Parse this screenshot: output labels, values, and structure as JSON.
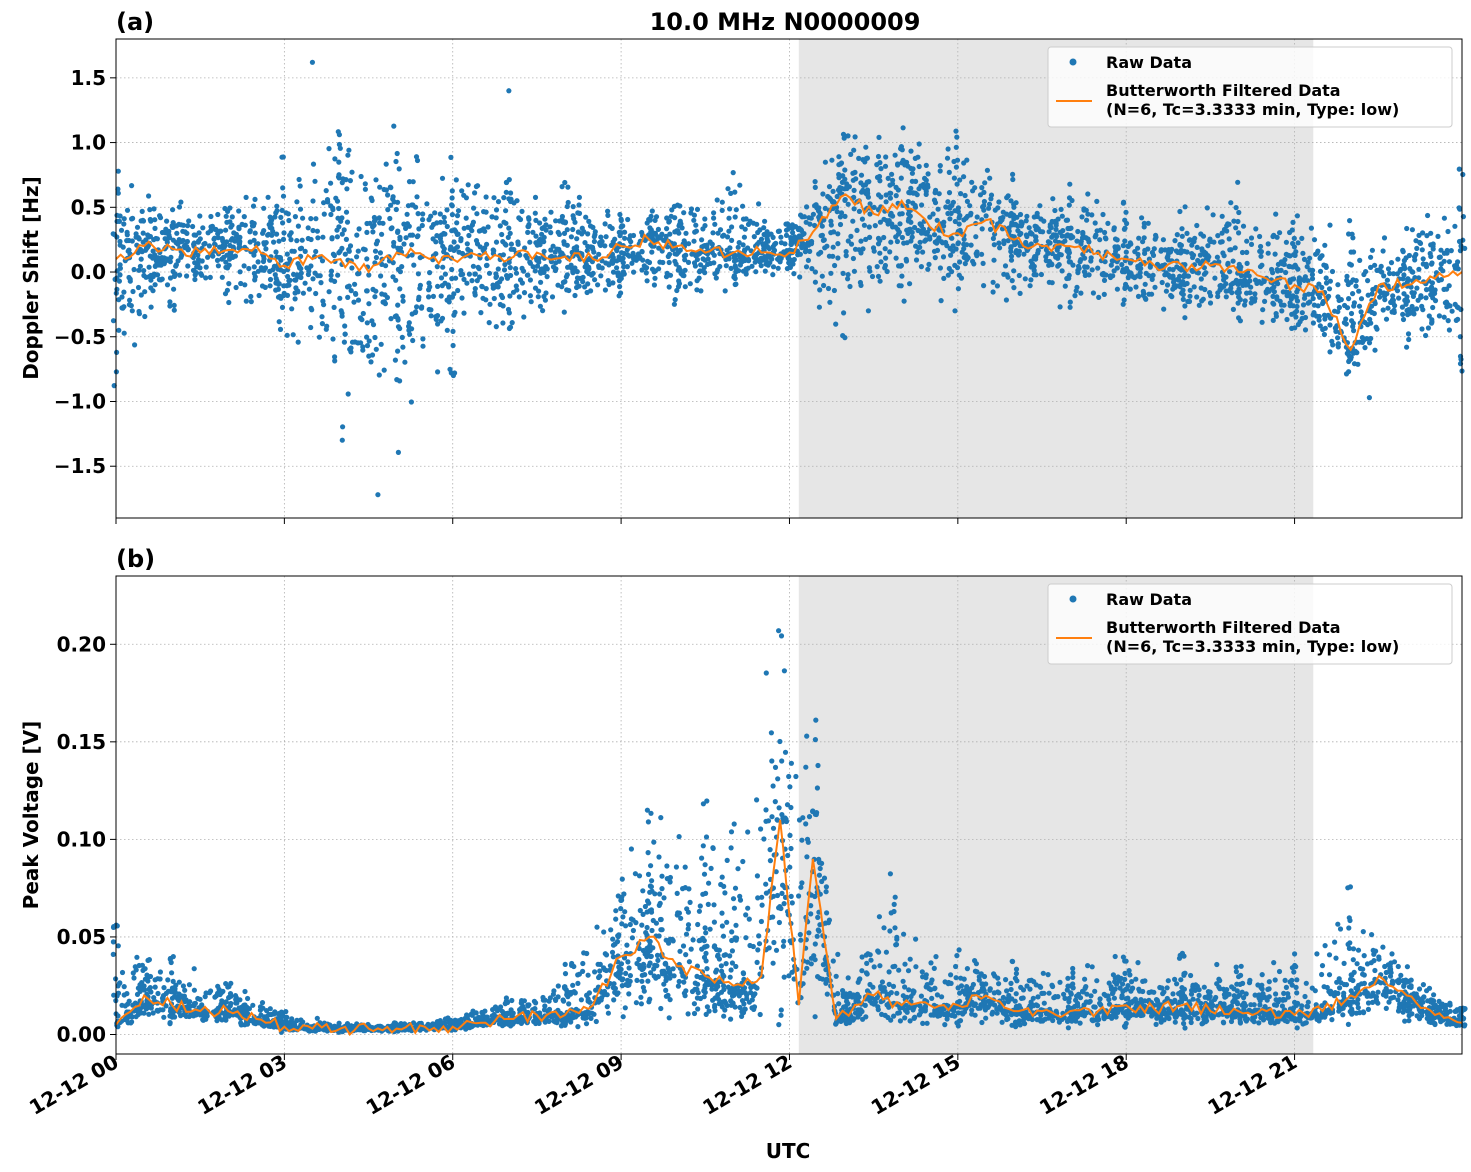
{
  "figure": {
    "title": "10.0 MHz N0000009",
    "xlabel": "UTC",
    "x_tick_labels": [
      "12-12 00",
      "12-12 03",
      "12-12 06",
      "12-12 09",
      "12-12 12",
      "12-12 15",
      "12-12 18",
      "12-12 21"
    ]
  },
  "colors": {
    "raw": "#1f77b4",
    "filtered": "#ff7f0e",
    "shade": "#e6e6e6",
    "grid": "#b0b0b0"
  },
  "chart_data": [
    {
      "type": "scatter",
      "panel_label": "(a)",
      "title": "10.0 MHz N0000009",
      "xlabel": "UTC",
      "ylabel": "Doppler Shift [Hz]",
      "x_range": [
        "12-12 00:00",
        "12-12 23:59"
      ],
      "ylim": [
        -1.9,
        1.8
      ],
      "y_ticks": [
        -1.5,
        -1.0,
        -0.5,
        0.0,
        0.5,
        1.0,
        1.5
      ],
      "y_tick_labels": [
        "−1.5",
        "−1.0",
        "−0.5",
        "0.0",
        "0.5",
        "1.0",
        "1.5"
      ],
      "grid": true,
      "legend_position": "top-right",
      "shaded_interval": [
        "12-12 12:10",
        "12-12 21:20"
      ],
      "series": [
        {
          "name": "Raw Data",
          "kind": "points",
          "x": [
            "12-12 00:00",
            "12-12 01:00",
            "12-12 02:00",
            "12-12 03:00",
            "12-12 04:00",
            "12-12 05:00",
            "12-12 06:00",
            "12-12 07:00",
            "12-12 08:00",
            "12-12 09:00",
            "12-12 10:00",
            "12-12 11:00",
            "12-12 12:00",
            "12-12 13:00",
            "12-12 14:00",
            "12-12 15:00",
            "12-12 16:00",
            "12-12 17:00",
            "12-12 18:00",
            "12-12 19:00",
            "12-12 20:00",
            "12-12 21:00",
            "12-12 22:00",
            "12-12 23:00",
            "12-12 23:59"
          ],
          "y_min": [
            -0.9,
            -0.3,
            -0.25,
            -0.6,
            -1.3,
            -1.5,
            -0.8,
            -0.6,
            -0.4,
            -0.3,
            -0.3,
            -0.2,
            0.0,
            -0.7,
            -0.3,
            -0.3,
            -0.3,
            -0.3,
            -0.3,
            -0.4,
            -0.4,
            -0.5,
            -0.9,
            -0.6,
            -0.8
          ],
          "y_max": [
            0.8,
            0.6,
            0.6,
            0.9,
            1.4,
            1.3,
            0.9,
            0.8,
            0.7,
            0.5,
            0.6,
            0.8,
            0.4,
            1.2,
            1.2,
            1.1,
            0.8,
            0.7,
            0.6,
            0.6,
            0.7,
            0.5,
            0.5,
            0.4,
            0.8
          ],
          "notable_points": [
            {
              "x": "12-12 03:30",
              "y": 1.62
            },
            {
              "x": "12-12 04:40",
              "y": -1.72
            },
            {
              "x": "12-12 07:00",
              "y": 1.4
            },
            {
              "x": "12-12 22:20",
              "y": -0.97
            }
          ]
        },
        {
          "name": "Butterworth Filtered Data\n(N=6, Tc=3.3333 min, Type: low)",
          "kind": "line",
          "x": [
            "12-12 00:00",
            "12-12 00:30",
            "12-12 01:00",
            "12-12 01:30",
            "12-12 02:00",
            "12-12 02:30",
            "12-12 03:00",
            "12-12 03:30",
            "12-12 04:00",
            "12-12 04:30",
            "12-12 05:00",
            "12-12 05:30",
            "12-12 06:00",
            "12-12 06:30",
            "12-12 07:00",
            "12-12 07:30",
            "12-12 08:00",
            "12-12 08:30",
            "12-12 09:00",
            "12-12 09:30",
            "12-12 10:00",
            "12-12 10:30",
            "12-12 11:00",
            "12-12 11:30",
            "12-12 12:00",
            "12-12 12:30",
            "12-12 13:00",
            "12-12 13:30",
            "12-12 14:00",
            "12-12 14:30",
            "12-12 15:00",
            "12-12 15:30",
            "12-12 16:00",
            "12-12 16:30",
            "12-12 17:00",
            "12-12 17:30",
            "12-12 18:00",
            "12-12 18:30",
            "12-12 19:00",
            "12-12 19:30",
            "12-12 20:00",
            "12-12 20:30",
            "12-12 21:00",
            "12-12 21:30",
            "12-12 22:00",
            "12-12 22:30",
            "12-12 23:00",
            "12-12 23:30",
            "12-12 23:59"
          ],
          "y": [
            0.1,
            0.2,
            0.18,
            0.15,
            0.17,
            0.2,
            0.05,
            0.1,
            0.1,
            0.0,
            0.15,
            0.12,
            0.1,
            0.12,
            0.1,
            0.15,
            0.12,
            0.1,
            0.2,
            0.25,
            0.2,
            0.15,
            0.15,
            0.15,
            0.15,
            0.35,
            0.6,
            0.45,
            0.55,
            0.35,
            0.3,
            0.4,
            0.25,
            0.2,
            0.2,
            0.15,
            0.1,
            0.05,
            0.05,
            0.05,
            0.0,
            -0.05,
            -0.1,
            -0.15,
            -0.6,
            -0.1,
            -0.1,
            -0.05,
            0.0
          ]
        }
      ]
    },
    {
      "type": "scatter",
      "panel_label": "(b)",
      "xlabel": "UTC",
      "ylabel": "Peak Voltage [V]",
      "x_range": [
        "12-12 00:00",
        "12-12 23:59"
      ],
      "ylim": [
        -0.01,
        0.235
      ],
      "y_ticks": [
        0.0,
        0.05,
        0.1,
        0.15,
        0.2
      ],
      "y_tick_labels": [
        "0.00",
        "0.05",
        "0.10",
        "0.15",
        "0.20"
      ],
      "grid": true,
      "legend_position": "top-right",
      "shaded_interval": [
        "12-12 12:10",
        "12-12 21:20"
      ],
      "series": [
        {
          "name": "Raw Data",
          "kind": "points",
          "x": [
            "12-12 00:00",
            "12-12 01:00",
            "12-12 02:00",
            "12-12 03:00",
            "12-12 04:00",
            "12-12 05:00",
            "12-12 06:00",
            "12-12 07:00",
            "12-12 08:00",
            "12-12 09:00",
            "12-12 09:30",
            "12-12 10:30",
            "12-12 11:00",
            "12-12 11:50",
            "12-12 12:30",
            "12-12 13:00",
            "12-12 13:50",
            "12-12 15:00",
            "12-12 16:00",
            "12-12 17:00",
            "12-12 18:00",
            "12-12 19:00",
            "12-12 20:00",
            "12-12 21:00",
            "12-12 22:00",
            "12-12 23:00",
            "12-12 23:59"
          ],
          "y_min": [
            0.003,
            0.005,
            0.004,
            0.001,
            0.001,
            0.001,
            0.002,
            0.003,
            0.003,
            0.005,
            0.005,
            0.005,
            0.003,
            0.005,
            0.003,
            0.002,
            0.003,
            0.003,
            0.003,
            0.003,
            0.003,
            0.003,
            0.003,
            0.003,
            0.004,
            0.003,
            0.003
          ],
          "y_max": [
            0.057,
            0.04,
            0.03,
            0.012,
            0.006,
            0.006,
            0.01,
            0.02,
            0.04,
            0.09,
            0.12,
            0.122,
            0.11,
            0.224,
            0.17,
            0.03,
            0.084,
            0.045,
            0.04,
            0.04,
            0.044,
            0.042,
            0.04,
            0.045,
            0.08,
            0.04,
            0.015
          ]
        },
        {
          "name": "Butterworth Filtered Data\n(N=6, Tc=3.3333 min, Type: low)",
          "kind": "line",
          "x": [
            "12-12 00:00",
            "12-12 00:30",
            "12-12 01:00",
            "12-12 01:30",
            "12-12 02:00",
            "12-12 02:30",
            "12-12 03:00",
            "12-12 03:30",
            "12-12 04:00",
            "12-12 04:30",
            "12-12 05:00",
            "12-12 05:30",
            "12-12 06:00",
            "12-12 06:30",
            "12-12 07:00",
            "12-12 07:30",
            "12-12 08:00",
            "12-12 08:30",
            "12-12 09:00",
            "12-12 09:30",
            "12-12 10:00",
            "12-12 10:30",
            "12-12 11:00",
            "12-12 11:30",
            "12-12 11:50",
            "12-12 12:10",
            "12-12 12:25",
            "12-12 12:50",
            "12-12 13:30",
            "12-12 14:00",
            "12-12 14:30",
            "12-12 15:00",
            "12-12 15:30",
            "12-12 16:00",
            "12-12 16:30",
            "12-12 17:00",
            "12-12 17:30",
            "12-12 18:00",
            "12-12 18:30",
            "12-12 19:00",
            "12-12 19:30",
            "12-12 20:00",
            "12-12 20:30",
            "12-12 21:00",
            "12-12 21:30",
            "12-12 22:00",
            "12-12 22:30",
            "12-12 23:00",
            "12-12 23:30",
            "12-12 23:59"
          ],
          "y": [
            0.005,
            0.02,
            0.015,
            0.012,
            0.012,
            0.008,
            0.004,
            0.003,
            0.003,
            0.003,
            0.003,
            0.004,
            0.004,
            0.006,
            0.008,
            0.01,
            0.01,
            0.015,
            0.04,
            0.05,
            0.035,
            0.03,
            0.025,
            0.03,
            0.11,
            0.015,
            0.09,
            0.008,
            0.02,
            0.015,
            0.015,
            0.015,
            0.02,
            0.012,
            0.012,
            0.012,
            0.012,
            0.015,
            0.013,
            0.015,
            0.012,
            0.012,
            0.012,
            0.01,
            0.012,
            0.02,
            0.03,
            0.02,
            0.01,
            0.006
          ]
        }
      ]
    }
  ]
}
